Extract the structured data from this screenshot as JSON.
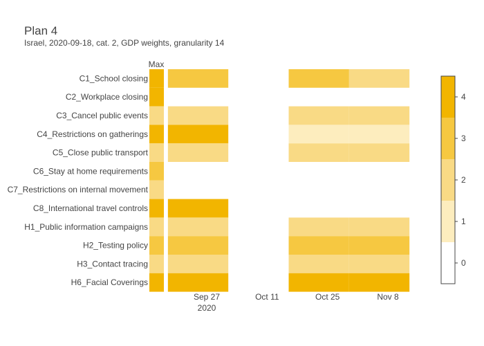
{
  "chart_data": {
    "type": "heatmap",
    "title": "Plan 4",
    "subtitle": "Israel, 2020-09-18, cat. 2, GDP weights, granularity 14",
    "max_column_label": "Max",
    "categories": [
      "C1_School closing",
      "C2_Workplace closing",
      "C3_Cancel public events",
      "C4_Restrictions on gatherings",
      "C5_Close public transport",
      "C6_Stay at home requirements",
      "C7_Restrictions on internal movement",
      "C8_International travel controls",
      "H1_Public information campaigns",
      "H2_Testing policy",
      "H3_Contact tracing",
      "H6_Facial Coverings"
    ],
    "x_ticks": [
      {
        "date": "2020-09-27",
        "label": "Sep 27",
        "sublabel": "2020"
      },
      {
        "date": "2020-10-11",
        "label": "Oct 11",
        "sublabel": ""
      },
      {
        "date": "2020-10-25",
        "label": "Oct 25",
        "sublabel": ""
      },
      {
        "date": "2020-11-08",
        "label": "Nov 8",
        "sublabel": ""
      }
    ],
    "periods": [
      {
        "start": "2020-09-18",
        "end": "2020-10-02"
      },
      {
        "start": "2020-10-16",
        "end": "2020-10-30"
      },
      {
        "start": "2020-10-30",
        "end": "2020-11-13"
      }
    ],
    "max_values": [
      4,
      4,
      2,
      4,
      2,
      3,
      2,
      4,
      2,
      3,
      2,
      4
    ],
    "period_values": [
      [
        3,
        3,
        2
      ],
      [
        null,
        null,
        null
      ],
      [
        2,
        2,
        2
      ],
      [
        4,
        1,
        1
      ],
      [
        2,
        2,
        2
      ],
      [
        null,
        null,
        null
      ],
      [
        null,
        null,
        null
      ],
      [
        4,
        null,
        null
      ],
      [
        2,
        2,
        2
      ],
      [
        3,
        3,
        3
      ],
      [
        2,
        2,
        2
      ],
      [
        4,
        4,
        4
      ]
    ],
    "colorbar": {
      "ticks": [
        0,
        1,
        2,
        3,
        4
      ],
      "colors": [
        "#ffffff",
        "#fdedbe",
        "#f9da85",
        "#f6c841",
        "#f2b500"
      ]
    }
  }
}
